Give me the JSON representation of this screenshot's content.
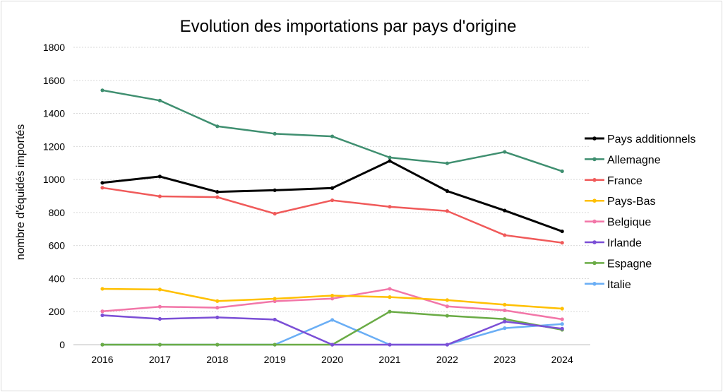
{
  "chart_data": {
    "type": "line",
    "title": "Evolution des importations par pays d'origine",
    "xlabel": "",
    "ylabel": "nombre d'équidés importés",
    "ylim": [
      0,
      1800
    ],
    "yticks": [
      0,
      200,
      400,
      600,
      800,
      1000,
      1200,
      1400,
      1600,
      1800
    ],
    "grid": true,
    "legend_position": "right",
    "categories": [
      "2016",
      "2017",
      "2018",
      "2019",
      "2020",
      "2021",
      "2022",
      "2023",
      "2024"
    ],
    "series": [
      {
        "name": "Pays additionnels",
        "color": "#000000",
        "values": [
          980,
          1018,
          925,
          935,
          948,
          1112,
          930,
          812,
          686
        ]
      },
      {
        "name": "Allemagne",
        "color": "#3f8f70",
        "values": [
          1540,
          1478,
          1322,
          1277,
          1261,
          1133,
          1098,
          1167,
          1050
        ]
      },
      {
        "name": "France",
        "color": "#f05a5a",
        "values": [
          950,
          898,
          893,
          793,
          874,
          835,
          809,
          663,
          617
        ]
      },
      {
        "name": "Pays-Bas",
        "color": "#ffc000",
        "values": [
          338,
          334,
          264,
          278,
          297,
          288,
          270,
          242,
          218
        ]
      },
      {
        "name": "Belgique",
        "color": "#f276a8",
        "values": [
          202,
          230,
          224,
          263,
          279,
          338,
          232,
          208,
          154
        ]
      },
      {
        "name": "Irlande",
        "color": "#7b4fd6",
        "values": [
          178,
          156,
          165,
          152,
          0,
          0,
          0,
          140,
          97
        ]
      },
      {
        "name": "Espagne",
        "color": "#6aab45",
        "values": [
          0,
          0,
          0,
          0,
          0,
          200,
          175,
          155,
          90
        ]
      },
      {
        "name": "Italie",
        "color": "#6aaef5",
        "values": [
          0,
          0,
          0,
          0,
          150,
          0,
          0,
          100,
          125
        ]
      }
    ]
  }
}
